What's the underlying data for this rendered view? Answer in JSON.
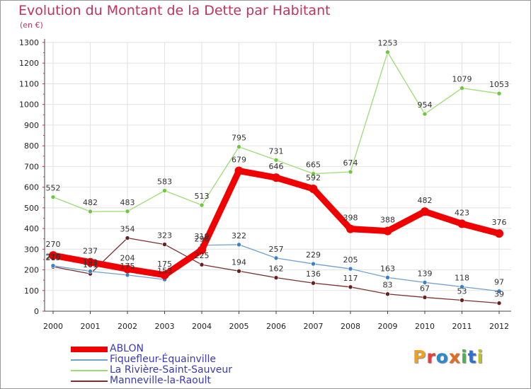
{
  "title": "Evolution du Montant de la Dette par Habitant",
  "subtitle": "(en €)",
  "logo": {
    "text": "Proxiti",
    "letters": [
      {
        "ch": "P",
        "color": "#f0a020"
      },
      {
        "ch": "r",
        "color": "#e04040"
      },
      {
        "ch": "o",
        "color": "#2a8ad0"
      },
      {
        "ch": "x",
        "color": "#e07020"
      },
      {
        "ch": "i",
        "color": "#50b050"
      },
      {
        "ch": "t",
        "color": "#3070d0"
      },
      {
        "ch": "i",
        "color": "#c0c020"
      }
    ]
  },
  "chart_data": {
    "type": "line",
    "title": "Evolution du Montant de la Dette par Habitant",
    "subtitle": "(en €)",
    "x": [
      "2000",
      "2001",
      "2002",
      "2003",
      "2004",
      "2005",
      "2006",
      "2007",
      "2008",
      "2009",
      "2010",
      "2011",
      "2012"
    ],
    "ylim": [
      0,
      1300
    ],
    "yticks": [
      0,
      100,
      200,
      300,
      400,
      500,
      600,
      700,
      800,
      900,
      1000,
      1100,
      1200,
      1300
    ],
    "grid": true,
    "legend_position": "bottom-left",
    "series": [
      {
        "name": "La Rivière-Saint-Sauveur",
        "color": "#9cdc74",
        "marker": "#6cc83c",
        "width": 1.3,
        "values": [
          552,
          482,
          483,
          583,
          513,
          795,
          731,
          665,
          674,
          1253,
          954,
          1079,
          1053
        ]
      },
      {
        "name": "Manneville-la-Raoult",
        "color": "#7a3030",
        "marker": "#6a1e1e",
        "width": 1.3,
        "values": [
          215,
          181,
          354,
          323,
          225,
          194,
          162,
          136,
          117,
          83,
          67,
          53,
          39
        ]
      },
      {
        "name": "Fiquefleur-Équainville",
        "color": "#6ea0d0",
        "marker": "#3c80c8",
        "width": 1.3,
        "values": [
          220,
          193,
          175,
          153,
          319,
          322,
          257,
          229,
          205,
          163,
          139,
          118,
          97
        ]
      },
      {
        "name": "ABLON",
        "color": "#f00000",
        "marker": "#f00000",
        "width": 9,
        "values": [
          270,
          237,
          204,
          175,
          296,
          679,
          646,
          592,
          398,
          388,
          482,
          423,
          376
        ]
      }
    ],
    "legend_order": [
      "ABLON",
      "Fiquefleur-Équainville",
      "La Rivière-Saint-Sauveur",
      "Manneville-la-Raoult"
    ]
  }
}
